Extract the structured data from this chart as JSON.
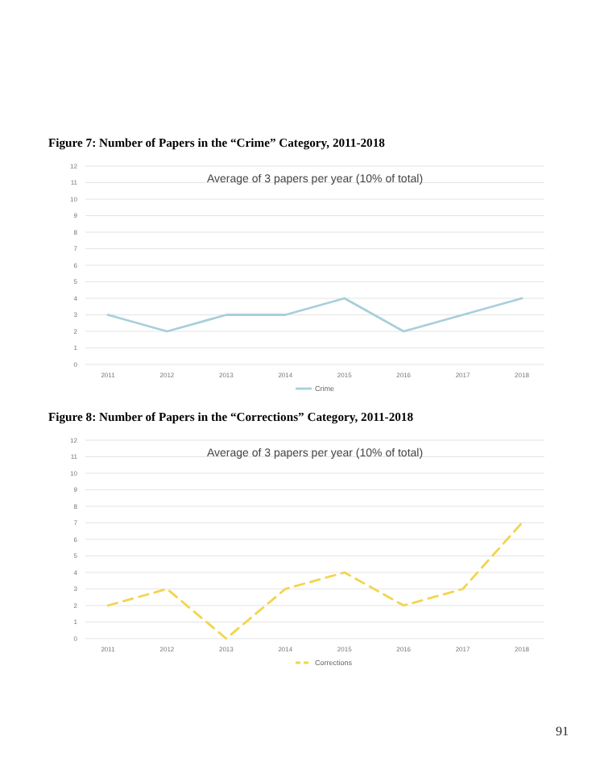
{
  "chart_data": [
    {
      "type": "line",
      "title": "Figure 7: Number of Papers in the “Crime” Category, 2011-2018",
      "annotations": [
        "Average of 3 papers per year (10% of total)"
      ],
      "categories": [
        "2011",
        "2012",
        "2013",
        "2014",
        "2015",
        "2016",
        "2017",
        "2018"
      ],
      "series": [
        {
          "name": "Crime",
          "color": "#a8cfdc",
          "values": [
            3,
            2,
            3,
            3,
            4,
            2,
            3,
            4
          ]
        }
      ],
      "ylim": [
        0,
        12
      ],
      "yticks": [
        0,
        1,
        2,
        3,
        4,
        5,
        6,
        7,
        8,
        9,
        10,
        11,
        12
      ],
      "grid": "y",
      "legend": "bottom",
      "line_style": "solid"
    },
    {
      "type": "line",
      "title": "Figure 8: Number of Papers in the “Corrections” Category, 2011-2018",
      "annotations": [
        "Average of 3 papers per year (10% of total)",
        "91"
      ],
      "categories": [
        "2011",
        "2012",
        "2013",
        "2014",
        "2015",
        "2016",
        "2017",
        "2018"
      ],
      "series": [
        {
          "name": "Corrections",
          "color": "#f2d54e",
          "values": [
            2,
            3,
            0,
            3,
            4,
            2,
            3,
            7
          ]
        }
      ],
      "ylim": [
        0,
        12
      ],
      "yticks": [
        0,
        1,
        2,
        3,
        4,
        5,
        6,
        7,
        8,
        9,
        10,
        11,
        12
      ],
      "grid": "y",
      "legend": "bottom",
      "line_style": "dashed"
    }
  ]
}
